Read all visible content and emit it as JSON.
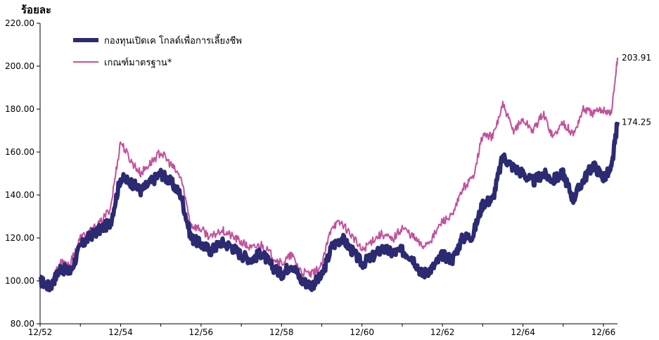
{
  "chart_data": {
    "type": "line",
    "ylabel": "ร้อยละ",
    "ylim": [
      80,
      220
    ],
    "y_ticks": [
      "220.00",
      "200.00",
      "180.00",
      "160.00",
      "140.00",
      "120.00",
      "100.00",
      "80.00"
    ],
    "y_tick_values": [
      220,
      200,
      180,
      160,
      140,
      120,
      100,
      80
    ],
    "x_ticks": [
      "12/52",
      "12/54",
      "12/56",
      "12/58",
      "12/60",
      "12/62",
      "12/64",
      "12/66"
    ],
    "x_range": [
      0,
      14.35
    ],
    "legend_position": "top-left",
    "series": [
      {
        "name": "กองทุนเปิดเค โกลด์เพื่อการเลี้ยงชีพ",
        "color": "#2b2a72",
        "end_label": "174.25",
        "x": [
          0,
          0.25,
          0.5,
          0.75,
          1.0,
          1.25,
          1.5,
          1.75,
          2.0,
          2.25,
          2.5,
          2.75,
          3.0,
          3.25,
          3.5,
          3.75,
          4.0,
          4.25,
          4.5,
          4.75,
          5.0,
          5.25,
          5.5,
          5.75,
          6.0,
          6.25,
          6.5,
          6.75,
          7.0,
          7.25,
          7.5,
          7.75,
          8.0,
          8.25,
          8.5,
          8.75,
          9.0,
          9.25,
          9.5,
          9.75,
          10.0,
          10.25,
          10.5,
          10.75,
          11.0,
          11.25,
          11.5,
          11.75,
          12.0,
          12.25,
          12.5,
          12.75,
          13.0,
          13.25,
          13.5,
          13.75,
          14.0,
          14.2,
          14.35
        ],
        "y": [
          100,
          97,
          106,
          104,
          116,
          121,
          124,
          127,
          148,
          146,
          142,
          146,
          150,
          146,
          140,
          120,
          117,
          114,
          118,
          116,
          112,
          110,
          113,
          107,
          103,
          108,
          100,
          98,
          102,
          116,
          120,
          114,
          108,
          111,
          115,
          113,
          114,
          111,
          103,
          106,
          112,
          110,
          120,
          121,
          136,
          138,
          158,
          153,
          150,
          146,
          150,
          147,
          150,
          138,
          147,
          154,
          148,
          152,
          174
        ]
      },
      {
        "name": "เกณฑ์มาตรฐาน*",
        "color": "#c4509d",
        "end_label": "203.91",
        "x": [
          0,
          0.25,
          0.5,
          0.75,
          1.0,
          1.25,
          1.5,
          1.75,
          2.0,
          2.25,
          2.5,
          2.75,
          3.0,
          3.25,
          3.5,
          3.75,
          4.0,
          4.25,
          4.5,
          4.75,
          5.0,
          5.25,
          5.5,
          5.75,
          6.0,
          6.25,
          6.5,
          6.75,
          7.0,
          7.25,
          7.5,
          7.75,
          8.0,
          8.25,
          8.5,
          8.75,
          9.0,
          9.25,
          9.5,
          9.75,
          10.0,
          10.25,
          10.5,
          10.75,
          11.0,
          11.25,
          11.5,
          11.75,
          12.0,
          12.25,
          12.5,
          12.75,
          13.0,
          13.25,
          13.5,
          13.75,
          14.0,
          14.2,
          14.35
        ],
        "y": [
          101,
          99,
          108,
          108,
          120,
          123,
          127,
          134,
          165,
          156,
          150,
          155,
          160,
          154,
          148,
          126,
          124,
          120,
          124,
          121,
          118,
          115,
          117,
          112,
          108,
          112,
          104,
          103,
          107,
          126,
          127,
          121,
          114,
          119,
          122,
          119,
          125,
          121,
          116,
          120,
          128,
          130,
          143,
          148,
          168,
          167,
          182,
          170,
          175,
          170,
          178,
          167,
          174,
          168,
          180,
          178,
          180,
          178,
          204
        ]
      }
    ]
  }
}
